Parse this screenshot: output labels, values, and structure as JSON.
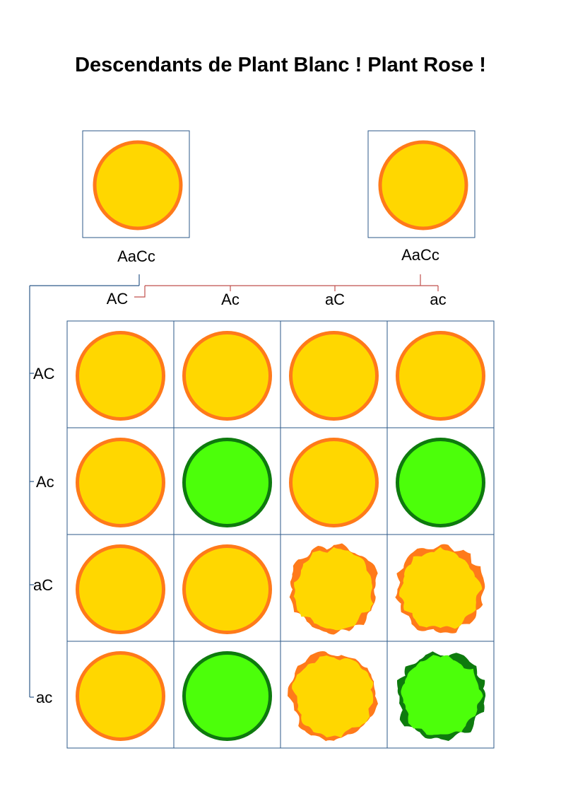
{
  "title": "Descendants de Plant Blanc ! Plant Rose !",
  "parents": [
    {
      "genotype": "AaCc",
      "phenotype": "yellow-round"
    },
    {
      "genotype": "AaCc",
      "phenotype": "yellow-round"
    }
  ],
  "gametes_top": [
    "AC",
    "Ac",
    "aC",
    "ac"
  ],
  "gametes_left": [
    "AC",
    "Ac",
    "aC",
    "ac"
  ],
  "grid": [
    [
      "yellow-round",
      "yellow-round",
      "yellow-round",
      "yellow-round"
    ],
    [
      "yellow-round",
      "green-round",
      "yellow-round",
      "green-round"
    ],
    [
      "yellow-round",
      "yellow-round",
      "yellow-wrinkled",
      "yellow-wrinkled"
    ],
    [
      "yellow-round",
      "green-round",
      "yellow-wrinkled",
      "green-wrinkled"
    ]
  ],
  "colors": {
    "yellow_fill": "#FFD700",
    "yellow_edge": "#FF7A1A",
    "green_fill": "#4CFF0A",
    "green_edge": "#0E7A0E",
    "box_border": "#2E5A8A",
    "cross_line": "#C0504D"
  }
}
